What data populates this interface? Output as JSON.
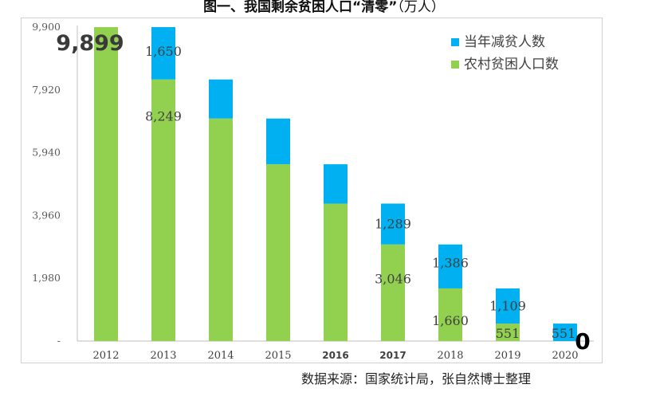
{
  "title": "图一、我国剩余贫困人口“清零”",
  "title_unit": "（万人）",
  "source": "数据来源：国家统计局，张自然博士整理",
  "chart_data": {
    "type": "bar",
    "stacked": true,
    "categories": [
      "2012",
      "2013",
      "2014",
      "2015",
      "2016",
      "2017",
      "2018",
      "2019",
      "2020"
    ],
    "series": [
      {
        "name": "农村贫困人口数",
        "color": "#92d050",
        "values": [
          9899,
          8249,
          7017,
          5575,
          4335,
          3046,
          1660,
          551,
          0
        ]
      },
      {
        "name": "当年减贫人数",
        "color": "#00b0f0",
        "values": [
          0,
          1650,
          1232,
          1442,
          1240,
          1289,
          1386,
          1109,
          551
        ]
      }
    ],
    "yticks": [
      "9,900",
      "7,920",
      "5,940",
      "3,960",
      "1,980",
      "-"
    ],
    "ylim": [
      0,
      9900
    ],
    "legend_position": "top-right",
    "grid": false,
    "data_labels": [
      {
        "category": "2012",
        "text": "9,899",
        "style": "big"
      },
      {
        "category": "2013",
        "text": "1,650",
        "style": "normal"
      },
      {
        "category": "2013",
        "text": "8,249",
        "style": "normal"
      },
      {
        "category": "2017",
        "text": "1,289",
        "style": "normal"
      },
      {
        "category": "2017",
        "text": "3,046",
        "style": "normal"
      },
      {
        "category": "2018",
        "text": "1,386",
        "style": "normal"
      },
      {
        "category": "2018",
        "text": "1,660",
        "style": "normal"
      },
      {
        "category": "2019",
        "text": "1,109",
        "style": "normal"
      },
      {
        "category": "2019",
        "text": "551",
        "style": "normal"
      },
      {
        "category": "2020",
        "text": "551",
        "style": "normal"
      },
      {
        "category": "2020",
        "text": "0",
        "style": "big"
      }
    ]
  }
}
